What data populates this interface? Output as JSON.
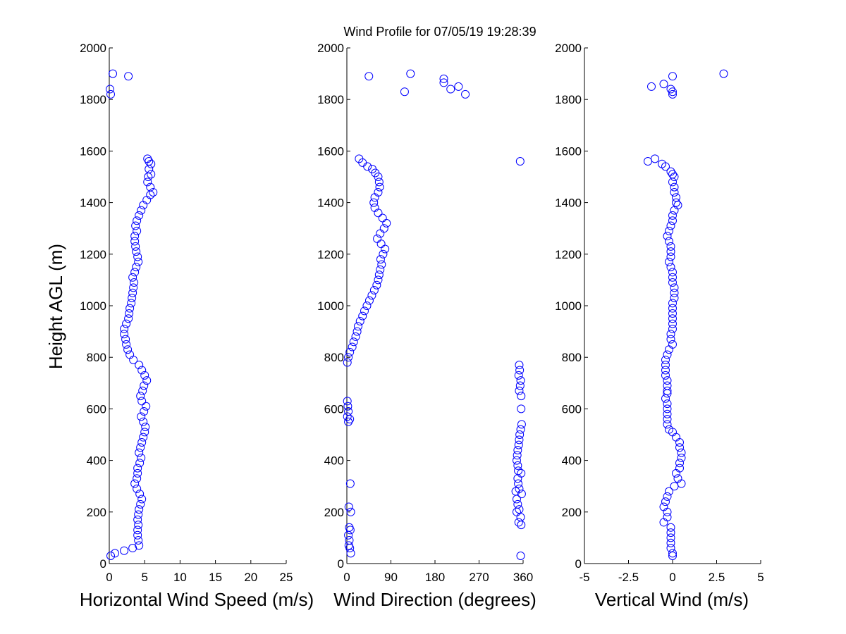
{
  "title": "Wind Profile for  07/05/19 19:28:39",
  "ylabel": "Height AGL (m)",
  "marker_color": "#0000ff",
  "chart_data": [
    {
      "type": "scatter",
      "id": "speed",
      "xlabel": "Horizontal Wind Speed (m/s)",
      "xlim": [
        0,
        25
      ],
      "ylim": [
        0,
        2000
      ],
      "xticks": [
        0,
        5,
        10,
        15,
        20,
        25
      ],
      "xtick_labels": [
        "0",
        "5",
        "10",
        "15",
        "20",
        "25"
      ],
      "yticks": [
        0,
        200,
        400,
        600,
        800,
        1000,
        1200,
        1400,
        1600,
        1800,
        2000
      ],
      "ytick_labels": [
        "0",
        "200",
        "400",
        "600",
        "800",
        "1000",
        "1200",
        "1400",
        "1600",
        "1800",
        "2000"
      ],
      "points": [
        [
          0.2,
          1820
        ],
        [
          0.1,
          1840
        ],
        [
          0.5,
          1900
        ],
        [
          2.7,
          1890
        ],
        [
          0.2,
          30
        ],
        [
          0.8,
          40
        ],
        [
          2.1,
          50
        ],
        [
          3.3,
          60
        ],
        [
          4.2,
          70
        ],
        [
          4.1,
          90
        ],
        [
          4.0,
          110
        ],
        [
          4.0,
          130
        ],
        [
          4.1,
          150
        ],
        [
          4.0,
          170
        ],
        [
          4.1,
          190
        ],
        [
          4.2,
          210
        ],
        [
          4.4,
          230
        ],
        [
          4.6,
          250
        ],
        [
          4.3,
          270
        ],
        [
          3.9,
          290
        ],
        [
          3.6,
          310
        ],
        [
          3.9,
          330
        ],
        [
          4.0,
          350
        ],
        [
          4.0,
          370
        ],
        [
          4.3,
          390
        ],
        [
          4.5,
          410
        ],
        [
          4.2,
          430
        ],
        [
          4.4,
          450
        ],
        [
          4.6,
          470
        ],
        [
          4.8,
          490
        ],
        [
          5.0,
          510
        ],
        [
          5.1,
          530
        ],
        [
          4.8,
          550
        ],
        [
          4.5,
          570
        ],
        [
          4.9,
          590
        ],
        [
          5.2,
          610
        ],
        [
          4.6,
          630
        ],
        [
          4.4,
          650
        ],
        [
          4.7,
          670
        ],
        [
          4.9,
          690
        ],
        [
          5.3,
          710
        ],
        [
          5.0,
          730
        ],
        [
          4.6,
          750
        ],
        [
          4.2,
          770
        ],
        [
          3.4,
          790
        ],
        [
          2.9,
          810
        ],
        [
          2.6,
          830
        ],
        [
          2.4,
          850
        ],
        [
          2.3,
          870
        ],
        [
          2.1,
          890
        ],
        [
          2.1,
          910
        ],
        [
          2.4,
          930
        ],
        [
          2.7,
          950
        ],
        [
          2.8,
          970
        ],
        [
          2.9,
          990
        ],
        [
          3.1,
          1010
        ],
        [
          3.2,
          1030
        ],
        [
          3.3,
          1050
        ],
        [
          3.4,
          1070
        ],
        [
          3.5,
          1090
        ],
        [
          3.3,
          1110
        ],
        [
          3.6,
          1130
        ],
        [
          3.8,
          1150
        ],
        [
          4.1,
          1170
        ],
        [
          4.0,
          1190
        ],
        [
          3.8,
          1210
        ],
        [
          3.7,
          1230
        ],
        [
          3.6,
          1250
        ],
        [
          3.6,
          1270
        ],
        [
          3.9,
          1290
        ],
        [
          3.7,
          1310
        ],
        [
          3.9,
          1330
        ],
        [
          4.2,
          1350
        ],
        [
          4.5,
          1370
        ],
        [
          4.8,
          1390
        ],
        [
          5.3,
          1410
        ],
        [
          5.8,
          1430
        ],
        [
          6.2,
          1440
        ],
        [
          5.8,
          1460
        ],
        [
          5.4,
          1480
        ],
        [
          5.5,
          1500
        ],
        [
          5.9,
          1510
        ],
        [
          5.6,
          1530
        ],
        [
          5.9,
          1550
        ],
        [
          5.6,
          1560
        ],
        [
          5.4,
          1570
        ]
      ]
    },
    {
      "type": "scatter",
      "id": "direction",
      "xlabel": "Wind Direction (degrees)",
      "xlim": [
        0,
        360
      ],
      "ylim": [
        0,
        2000
      ],
      "xticks": [
        0,
        90,
        180,
        270,
        360
      ],
      "xtick_labels": [
        "0",
        "90",
        "180",
        "270",
        "360"
      ],
      "yticks": [
        0,
        200,
        400,
        600,
        800,
        1000,
        1200,
        1400,
        1600,
        1800,
        2000
      ],
      "ytick_labels": [
        "0",
        "200",
        "400",
        "600",
        "800",
        "1000",
        "1200",
        "1400",
        "1600",
        "1800",
        "2000"
      ],
      "points": [
        [
          45,
          1890
        ],
        [
          130,
          1900
        ],
        [
          198,
          1880
        ],
        [
          198,
          1865
        ],
        [
          212,
          1840
        ],
        [
          228,
          1850
        ],
        [
          242,
          1820
        ],
        [
          118,
          1830
        ],
        [
          354,
          1560
        ],
        [
          25,
          1570
        ],
        [
          32,
          1555
        ],
        [
          42,
          1540
        ],
        [
          52,
          1530
        ],
        [
          58,
          1515
        ],
        [
          64,
          1500
        ],
        [
          66,
          1480
        ],
        [
          67,
          1460
        ],
        [
          64,
          1440
        ],
        [
          57,
          1420
        ],
        [
          55,
          1400
        ],
        [
          57,
          1380
        ],
        [
          64,
          1360
        ],
        [
          73,
          1340
        ],
        [
          81,
          1320
        ],
        [
          76,
          1300
        ],
        [
          68,
          1280
        ],
        [
          62,
          1260
        ],
        [
          70,
          1240
        ],
        [
          78,
          1220
        ],
        [
          74,
          1200
        ],
        [
          69,
          1180
        ],
        [
          71,
          1160
        ],
        [
          68,
          1140
        ],
        [
          66,
          1120
        ],
        [
          64,
          1100
        ],
        [
          61,
          1080
        ],
        [
          56,
          1060
        ],
        [
          51,
          1040
        ],
        [
          46,
          1020
        ],
        [
          41,
          1000
        ],
        [
          36,
          980
        ],
        [
          32,
          960
        ],
        [
          27,
          940
        ],
        [
          23,
          920
        ],
        [
          21,
          900
        ],
        [
          18,
          880
        ],
        [
          14,
          860
        ],
        [
          11,
          840
        ],
        [
          6,
          820
        ],
        [
          3,
          800
        ],
        [
          1,
          780
        ],
        [
          352,
          770
        ],
        [
          353,
          750
        ],
        [
          351,
          730
        ],
        [
          355,
          710
        ],
        [
          354,
          690
        ],
        [
          352,
          670
        ],
        [
          356,
          650
        ],
        [
          356,
          600
        ],
        [
          357,
          540
        ],
        [
          355,
          520
        ],
        [
          353,
          500
        ],
        [
          352,
          480
        ],
        [
          351,
          460
        ],
        [
          349,
          440
        ],
        [
          348,
          420
        ],
        [
          347,
          400
        ],
        [
          349,
          380
        ],
        [
          350,
          360
        ],
        [
          356,
          350
        ],
        [
          349,
          330
        ],
        [
          350,
          310
        ],
        [
          352,
          290
        ],
        [
          357,
          270
        ],
        [
          345,
          280
        ],
        [
          347,
          250
        ],
        [
          349,
          230
        ],
        [
          352,
          210
        ],
        [
          347,
          200
        ],
        [
          355,
          180
        ],
        [
          351,
          160
        ],
        [
          356,
          150
        ],
        [
          355,
          30
        ],
        [
          1,
          630
        ],
        [
          2,
          610
        ],
        [
          3,
          590
        ],
        [
          1,
          570
        ],
        [
          3,
          550
        ],
        [
          6,
          560
        ],
        [
          7,
          310
        ],
        [
          4,
          220
        ],
        [
          8,
          200
        ],
        [
          5,
          140
        ],
        [
          7,
          130
        ],
        [
          3,
          110
        ],
        [
          5,
          90
        ],
        [
          4,
          70
        ],
        [
          6,
          60
        ],
        [
          8,
          40
        ]
      ]
    },
    {
      "type": "scatter",
      "id": "vertical",
      "xlabel": "Vertical Wind (m/s)",
      "xlim": [
        -5,
        5
      ],
      "ylim": [
        0,
        2000
      ],
      "xticks": [
        -5,
        -2.5,
        0,
        2.5,
        5
      ],
      "xtick_labels": [
        "-5",
        "-2.5",
        "0",
        "2.5",
        "5"
      ],
      "yticks": [
        0,
        200,
        400,
        600,
        800,
        1000,
        1200,
        1400,
        1600,
        1800,
        2000
      ],
      "ytick_labels": [
        "0",
        "200",
        "400",
        "600",
        "800",
        "1000",
        "1200",
        "1400",
        "1600",
        "1800",
        "2000"
      ],
      "points": [
        [
          0.0,
          1890
        ],
        [
          2.9,
          1900
        ],
        [
          -0.5,
          1860
        ],
        [
          -1.2,
          1850
        ],
        [
          -0.1,
          1840
        ],
        [
          0.0,
          1830
        ],
        [
          0.0,
          1820
        ],
        [
          -1.4,
          1560
        ],
        [
          -1.0,
          1570
        ],
        [
          -0.6,
          1550
        ],
        [
          -0.4,
          1540
        ],
        [
          -0.1,
          1520
        ],
        [
          0.0,
          1510
        ],
        [
          0.1,
          1500
        ],
        [
          0.0,
          1480
        ],
        [
          0.1,
          1460
        ],
        [
          0.1,
          1440
        ],
        [
          0.2,
          1420
        ],
        [
          0.2,
          1400
        ],
        [
          0.3,
          1390
        ],
        [
          0.1,
          1370
        ],
        [
          0.0,
          1350
        ],
        [
          0.0,
          1330
        ],
        [
          -0.1,
          1310
        ],
        [
          -0.2,
          1290
        ],
        [
          -0.3,
          1270
        ],
        [
          -0.2,
          1250
        ],
        [
          -0.1,
          1230
        ],
        [
          -0.1,
          1210
        ],
        [
          -0.1,
          1190
        ],
        [
          -0.2,
          1170
        ],
        [
          -0.1,
          1150
        ],
        [
          0.0,
          1130
        ],
        [
          0.0,
          1110
        ],
        [
          0.0,
          1090
        ],
        [
          0.1,
          1070
        ],
        [
          0.1,
          1050
        ],
        [
          0.1,
          1030
        ],
        [
          0.0,
          1010
        ],
        [
          0.0,
          990
        ],
        [
          0.0,
          970
        ],
        [
          0.0,
          950
        ],
        [
          0.0,
          930
        ],
        [
          0.0,
          910
        ],
        [
          -0.1,
          890
        ],
        [
          -0.1,
          870
        ],
        [
          0.0,
          850
        ],
        [
          -0.2,
          830
        ],
        [
          -0.3,
          810
        ],
        [
          -0.4,
          790
        ],
        [
          -0.4,
          770
        ],
        [
          -0.4,
          750
        ],
        [
          -0.4,
          730
        ],
        [
          -0.3,
          710
        ],
        [
          -0.3,
          690
        ],
        [
          -0.3,
          670
        ],
        [
          -0.3,
          660
        ],
        [
          -0.4,
          640
        ],
        [
          -0.3,
          620
        ],
        [
          -0.3,
          600
        ],
        [
          -0.3,
          580
        ],
        [
          -0.3,
          560
        ],
        [
          -0.3,
          540
        ],
        [
          -0.2,
          520
        ],
        [
          0.0,
          510
        ],
        [
          0.2,
          490
        ],
        [
          0.4,
          470
        ],
        [
          0.4,
          450
        ],
        [
          0.5,
          430
        ],
        [
          0.5,
          410
        ],
        [
          0.4,
          390
        ],
        [
          0.4,
          370
        ],
        [
          0.2,
          350
        ],
        [
          0.3,
          330
        ],
        [
          0.5,
          310
        ],
        [
          0.1,
          300
        ],
        [
          -0.2,
          280
        ],
        [
          -0.3,
          260
        ],
        [
          -0.4,
          240
        ],
        [
          -0.5,
          220
        ],
        [
          -0.3,
          200
        ],
        [
          -0.5,
          160
        ],
        [
          -0.3,
          180
        ],
        [
          -0.1,
          140
        ],
        [
          -0.1,
          120
        ],
        [
          -0.1,
          100
        ],
        [
          -0.1,
          80
        ],
        [
          -0.1,
          60
        ],
        [
          0.0,
          40
        ],
        [
          0.0,
          30
        ]
      ]
    }
  ]
}
